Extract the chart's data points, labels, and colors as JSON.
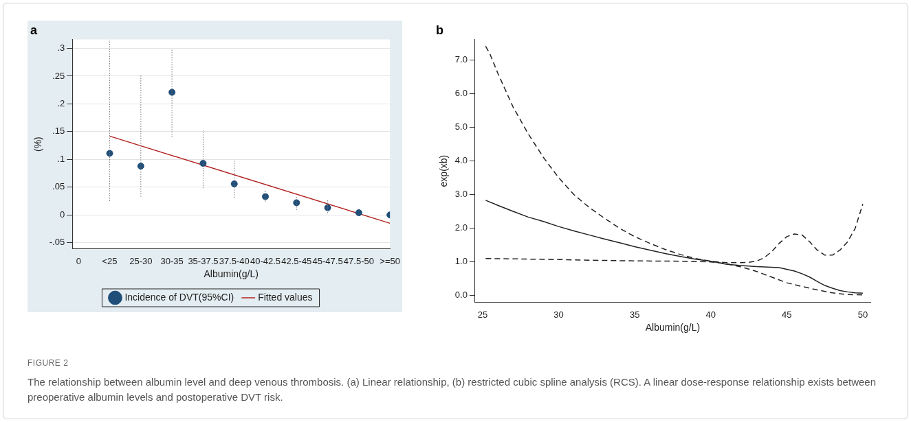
{
  "chart_data": [
    {
      "type": "scatter",
      "title": "a",
      "xlabel": "Albumin(g/L)",
      "ylabel": "(%)",
      "categories": [
        "0",
        "<25",
        "25-30",
        "30-35",
        "35-37.5",
        "37.5-40",
        "40-42.5",
        "42.5-45",
        "45-47.5",
        "47.5-50",
        ">=50"
      ],
      "ylim": [
        -0.061,
        0.316
      ],
      "yticks": [
        {
          "value": -0.05,
          "label": "-.05"
        },
        0,
        {
          "value": 0.05,
          "label": ".05"
        },
        {
          "value": 0.1,
          "label": ".1"
        },
        {
          "value": 0.15,
          "label": ".15"
        },
        {
          "value": 0.2,
          "label": ".2"
        },
        {
          "value": 0.25,
          "label": ".25"
        },
        {
          "value": 0.3,
          "label": ".3"
        }
      ],
      "grid": "y",
      "legend": "bottom",
      "series": [
        {
          "name": "Incidence of DVT(95%CI)",
          "type": "scatter",
          "color": "#1f4e79",
          "marker": "circle",
          "x": [
            "<25",
            "25-30",
            "30-35",
            "35-37.5",
            "37.5-40",
            "40-42.5",
            "42.5-45",
            "45-47.5",
            "47.5-50",
            ">=50"
          ],
          "values": [
            0.111,
            0.088,
            0.221,
            0.093,
            0.056,
            0.033,
            0.022,
            0.013,
            0.004,
            0.0
          ],
          "errors": [
            [
              0.025,
              0.315
            ],
            [
              0.033,
              0.253
            ],
            [
              0.14,
              0.3
            ],
            [
              0.048,
              0.153
            ],
            [
              0.031,
              0.1
            ],
            [
              0.024,
              0.045
            ],
            [
              0.009,
              0.033
            ],
            [
              0.003,
              0.028
            ],
            null,
            null
          ]
        },
        {
          "name": "Fitted values",
          "type": "line",
          "color": "#b22222",
          "marker": "none",
          "line_style": "solid",
          "x": [
            "<25",
            ">=50"
          ],
          "values": [
            0.142,
            -0.015
          ]
        }
      ]
    },
    {
      "type": "line",
      "title": "b",
      "xlabel": "Albumin(g/L)",
      "ylabel": "exp(xb)",
      "xlim": [
        24.5,
        50.5
      ],
      "xticks": [
        25,
        30,
        35,
        40,
        45,
        50
      ],
      "ylim": [
        -0.2,
        7.6
      ],
      "yticks": [
        {
          "value": 0,
          "label": "0.0"
        },
        {
          "value": 1,
          "label": "1.0"
        },
        {
          "value": 2,
          "label": "2.0"
        },
        {
          "value": 3,
          "label": "3.0"
        },
        {
          "value": 4,
          "label": "4.0"
        },
        {
          "value": 5,
          "label": "5.0"
        },
        {
          "value": 6,
          "label": "6.0"
        },
        {
          "value": 7,
          "label": "7.0"
        }
      ],
      "grid": false,
      "legend": false,
      "marker": "none",
      "annotations": [
        "FIGURE 2",
        "The relationship between albumin level and deep venous thrombosis. (a) Linear relationship, (b) restricted cubic spline analysis (RCS). A linear dose-response relationship exists between preoperative albumin levels and postoperative DVT risk."
      ],
      "series": [
        {
          "color": "#222222",
          "line_style": "solid",
          "x": [
            25.2,
            26,
            27,
            28,
            29,
            30,
            31,
            32,
            33,
            34,
            35,
            36,
            37,
            38,
            39,
            40,
            40.5,
            41,
            42,
            43,
            44,
            44.5,
            45,
            45.5,
            46,
            46.5,
            47,
            47.5,
            48,
            48.5,
            49,
            49.5,
            50
          ],
          "values": [
            2.83,
            2.68,
            2.5,
            2.33,
            2.2,
            2.05,
            1.92,
            1.8,
            1.68,
            1.57,
            1.45,
            1.35,
            1.25,
            1.16,
            1.08,
            1.02,
            0.98,
            0.93,
            0.89,
            0.86,
            0.84,
            0.83,
            0.78,
            0.73,
            0.65,
            0.55,
            0.42,
            0.3,
            0.22,
            0.15,
            0.11,
            0.08,
            0.07
          ]
        },
        {
          "color": "#222222",
          "line_style": "dashed",
          "x": [
            25.2,
            25.5,
            26,
            26.5,
            27,
            27.5,
            28,
            28.5,
            29,
            29.5,
            30,
            30.5,
            31,
            32,
            33,
            34,
            35,
            36,
            37,
            38,
            39,
            40,
            41,
            42,
            42.5,
            43,
            43.5,
            44,
            44.5,
            45,
            45.5,
            46,
            46.5,
            47,
            47.5,
            48,
            48.5,
            49,
            49.5,
            50
          ],
          "values": [
            7.4,
            7.15,
            6.6,
            6.1,
            5.6,
            5.2,
            4.8,
            4.45,
            4.1,
            3.8,
            3.5,
            3.25,
            3.0,
            2.62,
            2.3,
            2.0,
            1.75,
            1.55,
            1.37,
            1.22,
            1.1,
            1.02,
            0.98,
            0.98,
            0.99,
            1.02,
            1.12,
            1.3,
            1.55,
            1.75,
            1.83,
            1.8,
            1.6,
            1.35,
            1.2,
            1.2,
            1.35,
            1.6,
            2.0,
            2.72
          ]
        },
        {
          "color": "#222222",
          "line_style": "dashed",
          "x": [
            25.2,
            27,
            30,
            32,
            35,
            38,
            40,
            41,
            42,
            43,
            44,
            45,
            46,
            47,
            48,
            49,
            50
          ],
          "values": [
            1.1,
            1.09,
            1.07,
            1.05,
            1.03,
            1.02,
            1.0,
            0.95,
            0.85,
            0.72,
            0.55,
            0.38,
            0.27,
            0.17,
            0.08,
            0.03,
            0.02
          ]
        }
      ]
    }
  ]
}
